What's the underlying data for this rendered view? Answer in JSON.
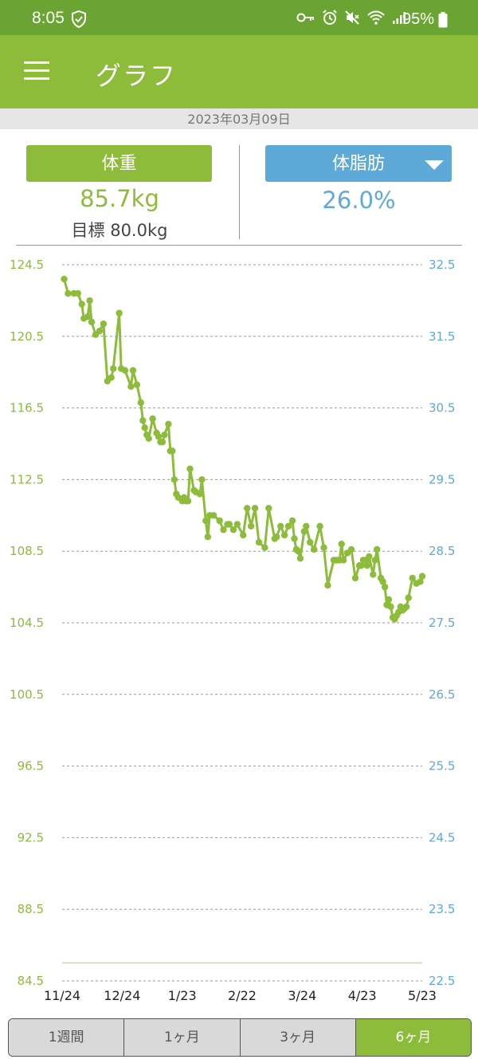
{
  "status_bar": {
    "time": "8:05",
    "battery": "95%",
    "icons": [
      "shield-check-icon",
      "key-icon",
      "alarm-icon",
      "mute-icon",
      "wifi-icon",
      "signal-icon",
      "battery-icon"
    ]
  },
  "app_bar": {
    "title": "グラフ",
    "menu_icon": "hamburger-menu-icon"
  },
  "date": "2023年03月09日",
  "weight_panel": {
    "button_label": "体重",
    "value": "85.7kg",
    "goal": "目標 80.0kg"
  },
  "fat_panel": {
    "button_label": "体脂肪",
    "value": "26.0%",
    "dropdown_icon": "caret-down-icon"
  },
  "colors": {
    "status_bar": "#6aa533",
    "primary": "#8dbc3b",
    "fat": "#5daad9",
    "tab_inactive": "#d9d9d9"
  },
  "chart_data": {
    "type": "line",
    "title": "",
    "xlabel": "",
    "ylabel": "",
    "grid": true,
    "x_ticks": [
      "11/24",
      "12/24",
      "1/23",
      "2/22",
      "3/24",
      "4/23",
      "5/23"
    ],
    "xlim": [
      "2022-11-24",
      "2023-05-26"
    ],
    "y_left": {
      "ticks": [
        "124.5",
        "120.5",
        "116.5",
        "112.5",
        "108.5",
        "104.5",
        "100.5",
        "96.5",
        "92.5",
        "88.5",
        "84.5"
      ],
      "ylim": [
        84.5,
        124.5
      ]
    },
    "y_right": {
      "ticks": [
        "32.5",
        "31.5",
        "30.5",
        "29.5",
        "28.5",
        "27.5",
        "26.5",
        "25.5",
        "24.5",
        "23.5",
        "22.5"
      ],
      "ylim": [
        22.5,
        32.5
      ]
    },
    "goal_line": 85.5,
    "series": [
      {
        "axis": "left",
        "x": [
          "2022-11-25",
          "2022-11-27",
          "2022-11-30",
          "2022-12-02",
          "2022-12-04",
          "2022-12-05",
          "2022-12-07",
          "2022-12-08",
          "2022-12-09",
          "2022-12-11",
          "2022-12-13",
          "2022-12-15",
          "2022-12-17",
          "2022-12-19",
          "2022-12-20",
          "2022-12-23",
          "2022-12-24",
          "2022-12-26",
          "2022-12-29",
          "2022-12-30",
          "2023-01-01",
          "2023-01-03",
          "2023-01-04",
          "2023-01-05",
          "2023-01-06",
          "2023-01-07",
          "2023-01-09",
          "2023-01-11",
          "2023-01-12",
          "2023-01-13",
          "2023-01-14",
          "2023-01-15",
          "2023-01-17",
          "2023-01-18",
          "2023-01-19",
          "2023-01-20",
          "2023-01-21",
          "2023-01-22",
          "2023-01-24",
          "2023-01-25",
          "2023-01-26",
          "2023-01-27",
          "2023-01-28",
          "2023-01-30",
          "2023-01-31",
          "2023-02-02",
          "2023-02-03",
          "2023-02-05",
          "2023-02-06",
          "2023-02-07",
          "2023-02-09",
          "2023-02-12",
          "2023-02-14",
          "2023-02-16",
          "2023-02-17",
          "2023-02-19",
          "2023-02-21",
          "2023-02-24",
          "2023-02-26",
          "2023-02-28",
          "2023-03-02",
          "2023-03-04",
          "2023-03-07",
          "2023-03-09",
          "2023-03-12",
          "2023-03-13",
          "2023-03-15",
          "2023-03-17",
          "2023-03-19",
          "2023-03-21",
          "2023-03-22",
          "2023-03-23",
          "2023-03-24",
          "2023-03-25",
          "2023-03-27",
          "2023-03-28",
          "2023-03-30",
          "2023-04-01",
          "2023-04-04",
          "2023-04-06",
          "2023-04-08",
          "2023-04-11",
          "2023-04-12",
          "2023-04-13",
          "2023-04-14",
          "2023-04-15",
          "2023-04-16",
          "2023-04-18",
          "2023-04-20",
          "2023-04-22",
          "2023-04-24",
          "2023-04-25",
          "2023-04-26",
          "2023-04-27",
          "2023-04-28",
          "2023-04-29",
          "2023-05-01",
          "2023-05-02",
          "2023-05-03",
          "2023-05-05",
          "2023-05-06",
          "2023-05-07",
          "2023-05-08",
          "2023-05-09",
          "2023-05-10",
          "2023-05-11",
          "2023-05-12",
          "2023-05-13",
          "2023-05-14",
          "2023-05-15",
          "2023-05-16",
          "2023-05-17",
          "2023-05-18",
          "2023-05-19",
          "2023-05-21",
          "2023-05-23",
          "2023-05-25",
          "2023-05-26"
        ],
        "values": [
          123.7,
          122.9,
          122.9,
          122.9,
          122.3,
          121.5,
          121.6,
          122.5,
          121.3,
          120.6,
          120.8,
          121.2,
          118.0,
          118.2,
          118.7,
          121.8,
          118.7,
          118.6,
          117.7,
          118.6,
          117.8,
          116.8,
          115.8,
          115.4,
          115.0,
          114.8,
          115.9,
          115.1,
          114.9,
          114.6,
          114.6,
          115.0,
          115.6,
          114.1,
          114.1,
          112.5,
          111.7,
          111.5,
          111.3,
          111.5,
          111.3,
          111.3,
          113.1,
          111.9,
          111.8,
          111.7,
          112.5,
          110.2,
          109.3,
          110.5,
          110.5,
          110.2,
          109.7,
          110.0,
          110.0,
          109.7,
          110.0,
          109.4,
          110.9,
          109.9,
          110.9,
          109.0,
          108.7,
          110.9,
          109.2,
          109.3,
          109.9,
          109.4,
          109.9,
          110.2,
          109.2,
          108.6,
          108.5,
          108.1,
          109.6,
          109.9,
          109.0,
          108.6,
          109.9,
          108.7,
          106.6,
          108.0,
          108.0,
          108.0,
          108.0,
          108.9,
          108.0,
          108.4,
          108.6,
          107.0,
          107.7,
          107.7,
          108.0,
          108.0,
          107.7,
          108.2,
          107.2,
          108.0,
          108.6,
          107.0,
          106.8,
          106.5,
          105.5,
          105.8,
          105.4,
          104.8,
          104.7,
          104.9,
          105.1,
          105.4,
          105.2,
          105.3,
          105.4,
          105.9,
          107.0,
          106.7,
          106.8,
          107.1
        ]
      }
    ]
  },
  "period_tabs": [
    {
      "label": "1週間",
      "active": false
    },
    {
      "label": "1ヶ月",
      "active": false
    },
    {
      "label": "3ヶ月",
      "active": false
    },
    {
      "label": "6ヶ月",
      "active": true
    }
  ]
}
